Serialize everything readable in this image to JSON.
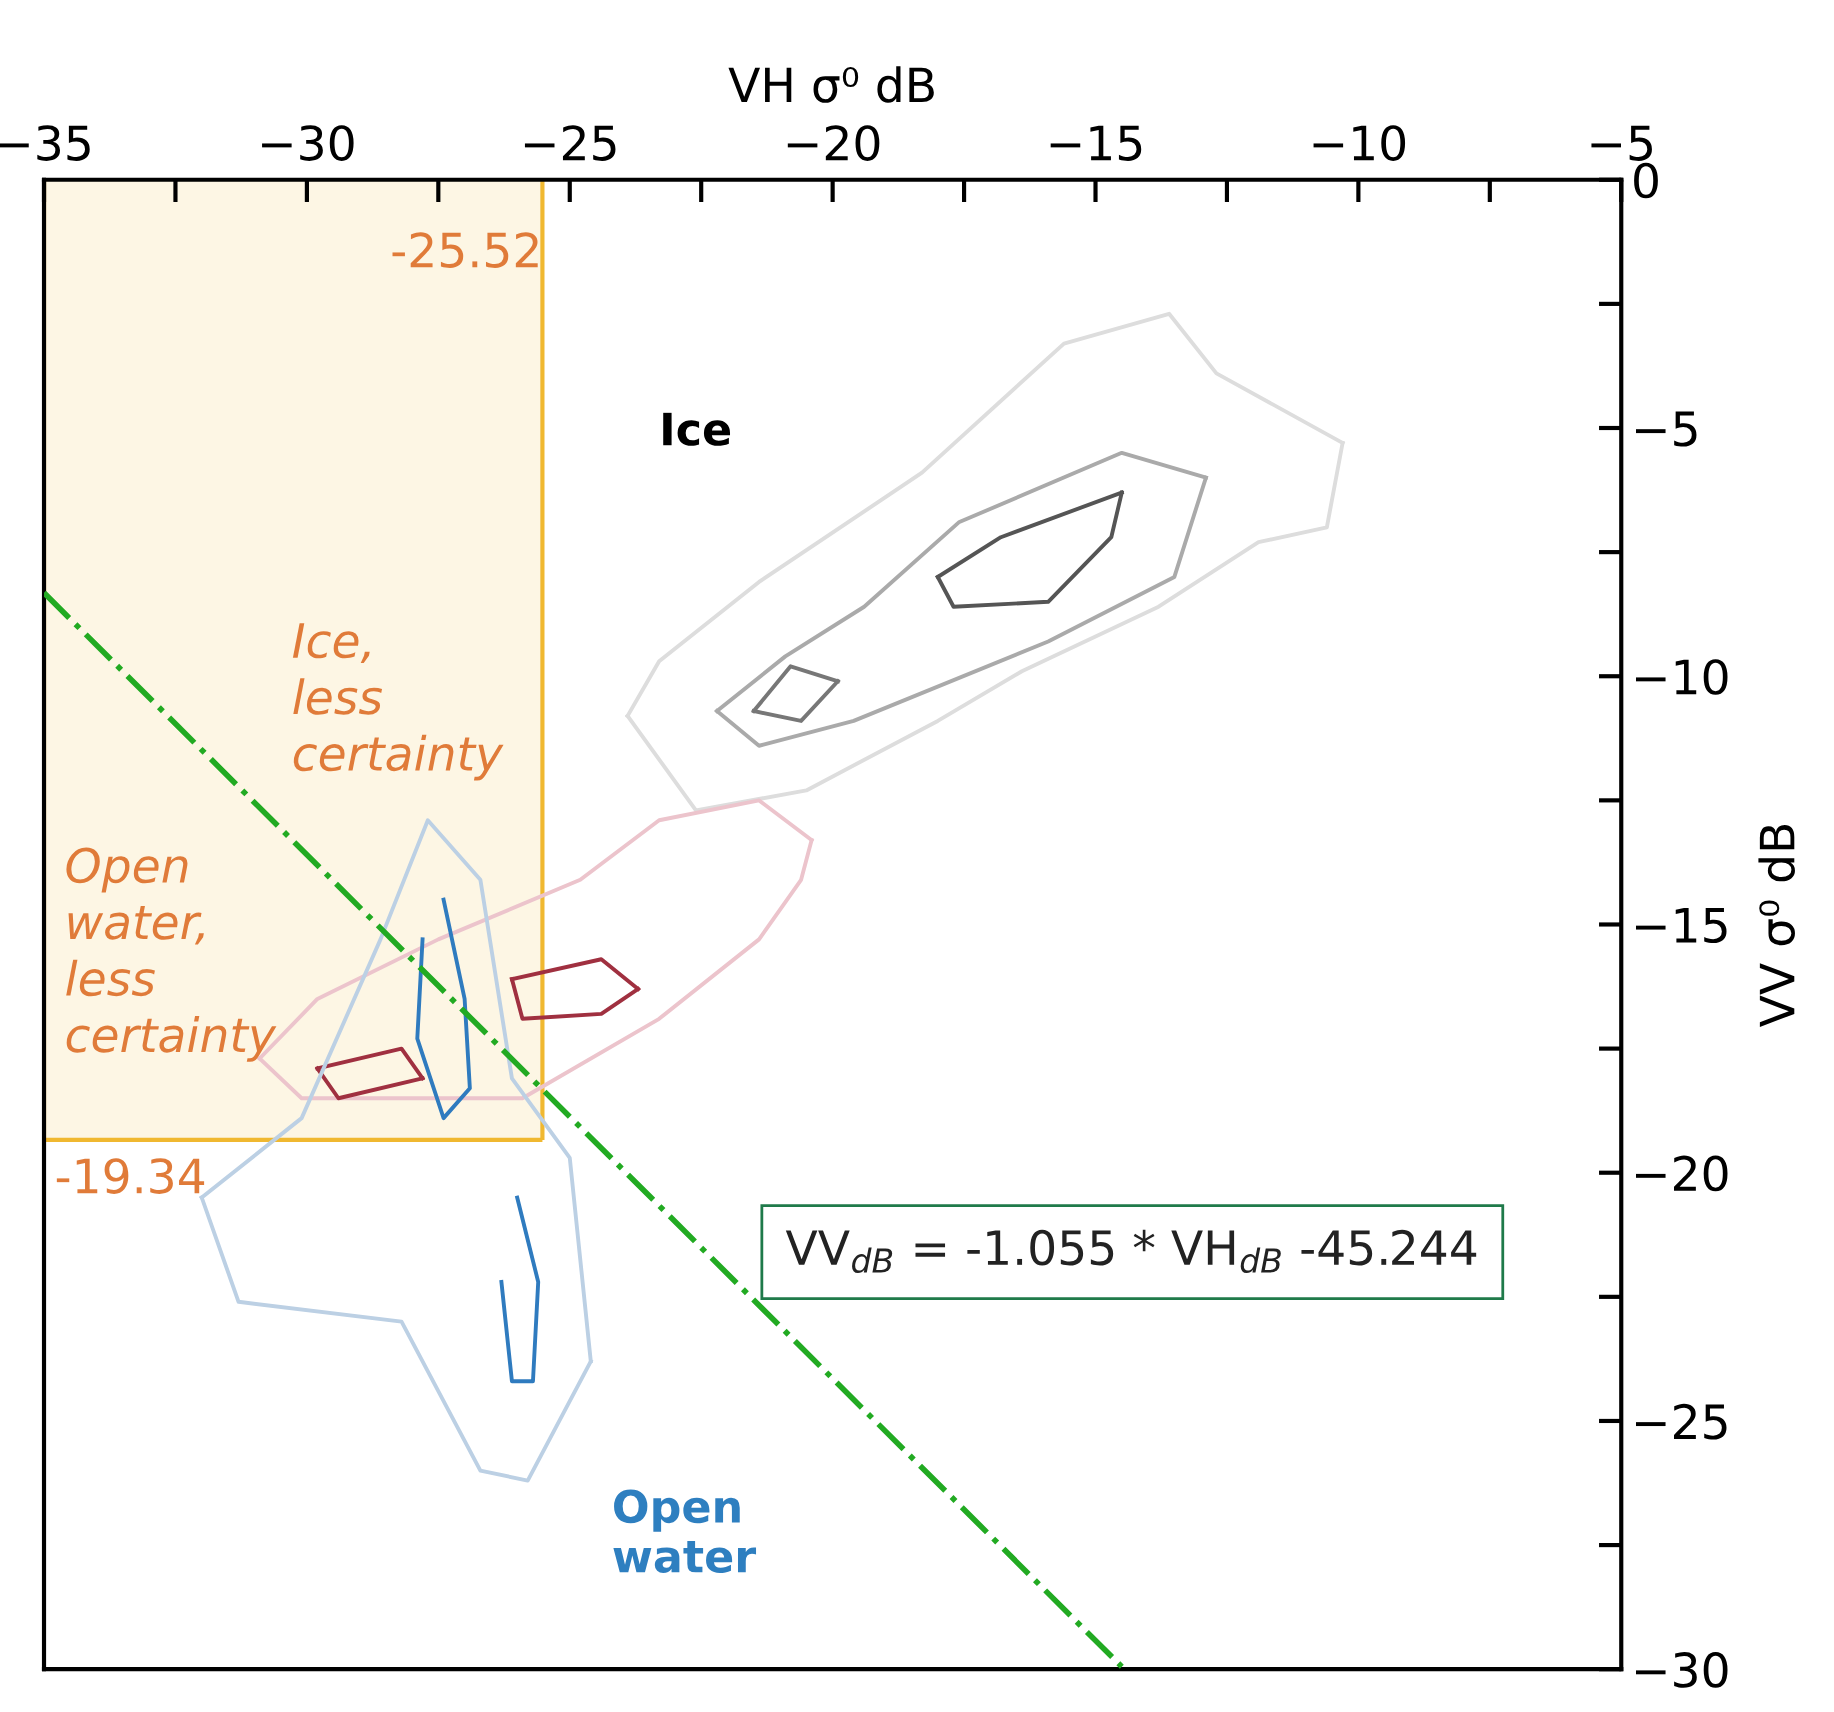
{
  "chart_data": {
    "type": "line",
    "xlabel": "VH σ⁰ dB",
    "ylabel": "VV σ⁰ dB",
    "xlim": [
      -35,
      -5
    ],
    "ylim": [
      -30,
      0
    ],
    "xticks": [
      -35,
      {
        "value": -32.5,
        "label": null
      },
      -30,
      {
        "value": -27.5,
        "label": null
      },
      -25,
      {
        "value": -22.5,
        "label": null
      },
      -20,
      {
        "value": -17.5,
        "label": null
      },
      -15,
      {
        "value": -12.5,
        "label": null
      },
      -10,
      {
        "value": -7.5,
        "label": null
      },
      -5
    ],
    "yticks": [
      0,
      {
        "value": -2.5,
        "label": null
      },
      -5,
      {
        "value": -7.5,
        "label": null
      },
      -10,
      {
        "value": -12.5,
        "label": null
      },
      -15,
      {
        "value": -17.5,
        "label": null
      },
      -20,
      {
        "value": -22.5,
        "label": null
      },
      -25,
      {
        "value": -27.5,
        "label": null
      },
      -30
    ],
    "grid": false,
    "legend": false,
    "marker": "none",
    "series": [
      {
        "color": "#dddddd",
        "x": [
          -23.9,
          -22.6,
          -20.5,
          -18.0,
          -16.4,
          -13.8,
          -11.9,
          -10.6,
          -10.3
        ],
        "values": [
          -10.8,
          -12.7,
          -12.3,
          -10.9,
          -9.9,
          -8.6,
          -7.3,
          -7.0,
          -5.3
        ]
      },
      {
        "color": "#dddddd",
        "x": [
          -23.9,
          -23.3,
          -21.4,
          -18.3,
          -15.6,
          -13.6,
          -12.7,
          -10.3
        ],
        "values": [
          -10.8,
          -9.7,
          -8.1,
          -5.9,
          -3.3,
          -2.7,
          -3.9,
          -5.3
        ]
      },
      {
        "color": "#aaaaaa",
        "x": [
          -22.2,
          -21.4,
          -19.6,
          -15.9,
          -13.5,
          -12.9
        ],
        "values": [
          -10.7,
          -11.4,
          -10.9,
          -9.3,
          -8.0,
          -6.0
        ]
      },
      {
        "color": "#aaaaaa",
        "x": [
          -22.2,
          -20.9,
          -19.4,
          -17.6,
          -14.5,
          -12.9
        ],
        "values": [
          -10.7,
          -9.6,
          -8.6,
          -6.9,
          -5.5,
          -6.0
        ]
      },
      {
        "color": "#777777",
        "x": [
          -21.5,
          -20.8,
          -19.9
        ],
        "values": [
          -10.7,
          -9.8,
          -10.1
        ]
      },
      {
        "color": "#777777",
        "x": [
          -21.5,
          -20.6,
          -19.9
        ],
        "values": [
          -10.7,
          -10.9,
          -10.1
        ]
      },
      {
        "color": "#555555",
        "x": [
          -18.0,
          -16.8,
          -14.5
        ],
        "values": [
          -8.0,
          -7.2,
          -6.3
        ]
      },
      {
        "color": "#555555",
        "x": [
          -18.0,
          -17.7,
          -15.9,
          -14.7,
          -14.5
        ],
        "values": [
          -8.0,
          -8.6,
          -8.5,
          -7.2,
          -6.3
        ]
      },
      {
        "color": "#ecc4cc",
        "x": [
          -30.9,
          -29.8,
          -27.5,
          -24.8,
          -23.3,
          -21.4,
          -20.4
        ],
        "values": [
          -17.7,
          -16.5,
          -15.3,
          -14.1,
          -12.9,
          -12.5,
          -13.3
        ]
      },
      {
        "color": "#ecc4cc",
        "x": [
          -30.9,
          -30.1,
          -25.9,
          -23.3,
          -21.4,
          -20.6,
          -20.4
        ],
        "values": [
          -17.7,
          -18.5,
          -18.5,
          -16.9,
          -15.3,
          -14.1,
          -13.3
        ]
      },
      {
        "color": "#a03040",
        "x": [
          -26.1,
          -24.4,
          -23.7
        ],
        "values": [
          -16.1,
          -15.7,
          -16.3
        ]
      },
      {
        "color": "#a03040",
        "x": [
          -26.1,
          -25.9,
          -24.4,
          -23.7
        ],
        "values": [
          -16.1,
          -16.9,
          -16.8,
          -16.3
        ]
      },
      {
        "color": "#a03040",
        "x": [
          -29.8,
          -28.2,
          -27.8
        ],
        "values": [
          -17.9,
          -17.5,
          -18.1
        ]
      },
      {
        "color": "#a03040",
        "x": [
          -29.8,
          -29.4,
          -27.8
        ],
        "values": [
          -17.9,
          -18.5,
          -18.1
        ]
      },
      {
        "color": "#bcd0e4",
        "x": [
          -32.0,
          -30.1,
          -28.6,
          -27.7,
          -26.7,
          -26.1,
          -25.0,
          -24.6
        ],
        "values": [
          -20.5,
          -18.9,
          -15.3,
          -12.9,
          -14.1,
          -18.1,
          -19.7,
          -23.8
        ]
      },
      {
        "color": "#bcd0e4",
        "x": [
          -32.0,
          -31.3,
          -28.2,
          -26.7,
          -25.8,
          -24.6
        ],
        "values": [
          -20.5,
          -22.6,
          -23.0,
          -26.0,
          -26.2,
          -23.8
        ]
      },
      {
        "color": "#2f7bbf",
        "x": [
          -27.4,
          -27.0,
          -26.9,
          -27.4,
          -27.9,
          -27.8
        ],
        "values": [
          -14.5,
          -16.5,
          -18.3,
          -18.9,
          -17.3,
          -15.3
        ]
      },
      {
        "color": "#2f7bbf",
        "x": [
          -26.0,
          -25.6,
          -25.7,
          -26.1,
          -26.3
        ],
        "values": [
          -20.5,
          -22.2,
          -24.2,
          -24.2,
          -22.2
        ]
      },
      {
        "color": "#22aa22",
        "line_style": "dashdot",
        "x": [
          -35,
          -14.5
        ],
        "values": [
          -8.32,
          -29.95
        ]
      }
    ],
    "bands": [
      {
        "axis": "x",
        "from": -35,
        "to": -25.52,
        "label": "-25.52",
        "color": "#fdf6e4"
      }
    ],
    "ref_lines": [
      {
        "axis": "y",
        "value": -19.34,
        "label": "-19.34",
        "color": "#f0b830"
      }
    ],
    "annotations": [
      "Ice",
      "Ice,\nless\ncertainty",
      "Open\nwater,\nless\ncertainty",
      "Open\nwater",
      "VV$_{dB}$ = -1.055 * VH$_{dB}$ -45.244"
    ]
  }
}
